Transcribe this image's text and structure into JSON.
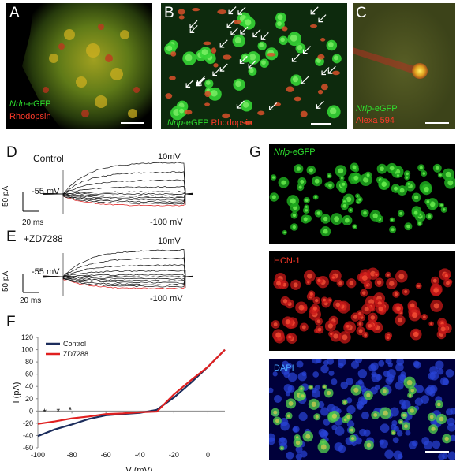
{
  "panels": {
    "A": {
      "label": "A",
      "cap1": "Nrlp",
      "cap1b": "-eGFP",
      "cap2": "Rhodopsin"
    },
    "B": {
      "label": "B",
      "cap1": "Nrlp",
      "cap1b": "-eGFP",
      "cap2": "Rhodopsin"
    },
    "C": {
      "label": "C",
      "cap1": "Nrlp",
      "cap1b": "-eGFP",
      "cap2": "Alexa 594"
    },
    "D": {
      "label": "D",
      "condition": "Control",
      "top_v": "10mV",
      "hold_v": "-55 mV",
      "bottom_v": "-100 mV",
      "scale_y": "50 pA",
      "scale_x": "20 ms"
    },
    "E": {
      "label": "E",
      "condition": "+ZD7288",
      "top_v": "10mV",
      "hold_v": "-55 mV",
      "bottom_v": "-100 mV",
      "scale_y": "50 pA",
      "scale_x": "20 ms"
    },
    "F": {
      "label": "F"
    },
    "G": {
      "label": "G",
      "stain1a": "Nrlp",
      "stain1b": "-eGFP",
      "stain2": "HCN-1",
      "stain3": "DAPI"
    }
  },
  "chart_data": {
    "type": "line",
    "xlabel": "V (mV)",
    "ylabel": "I (pA)",
    "xlim": [
      -100,
      10
    ],
    "ylim": [
      -60,
      120
    ],
    "xticks": [
      -100,
      -80,
      -60,
      -40,
      -20,
      0
    ],
    "yticks": [
      -60,
      -40,
      -20,
      0,
      20,
      40,
      60,
      80,
      100,
      120
    ],
    "grid": false,
    "legend": "top-left",
    "annotations": [
      "*",
      "*",
      "*"
    ],
    "annotation_x": [
      -96,
      -88,
      -81
    ],
    "annotation_y": [
      -7,
      -6,
      -4
    ],
    "series": [
      {
        "name": "Control",
        "color": "#1c2d5c",
        "x": [
          -100,
          -90,
          -80,
          -70,
          -60,
          -50,
          -40,
          -30,
          -20,
          -10,
          0,
          10
        ],
        "y": [
          -41,
          -30,
          -22,
          -13,
          -7,
          -5,
          -3,
          2,
          22,
          46,
          72,
          100
        ]
      },
      {
        "name": "ZD7288",
        "color": "#e02020",
        "x": [
          -100,
          -90,
          -80,
          -70,
          -60,
          -50,
          -40,
          -30,
          -20,
          -10,
          0,
          10
        ],
        "y": [
          -21,
          -17,
          -12,
          -9,
          -5,
          -4,
          -2,
          -1,
          27,
          50,
          72,
          100
        ]
      }
    ]
  }
}
